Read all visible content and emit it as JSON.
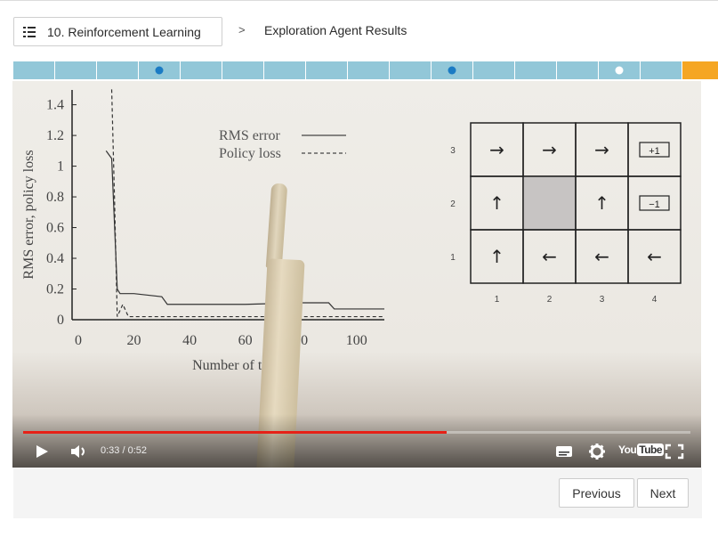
{
  "breadcrumb": {
    "lesson_label": "10. Reinforcement Learning",
    "separator": ">",
    "current": "Exploration Agent Results"
  },
  "progress": {
    "segments": 17,
    "dots": [
      {
        "segment": 3,
        "color": "#1b7bc4"
      },
      {
        "segment": 10,
        "color": "#1b7bc4"
      },
      {
        "segment": 14,
        "color": "#ffffff"
      }
    ],
    "accent": "#f5a623",
    "segment_color": "#92c7d8"
  },
  "video": {
    "current_time": "0:33",
    "duration": "0:52",
    "time_display": "0:33 / 0:52",
    "played_fraction": 0.635,
    "scrub_color": "#e62117",
    "logo_text_1": "You",
    "logo_text_2": "Tube",
    "icons": [
      "play-icon",
      "volume-icon",
      "captions-icon",
      "settings-gear-icon",
      "youtube-logo",
      "fullscreen-icon"
    ]
  },
  "chart_data": {
    "type": "line",
    "xlabel": "Number of trials",
    "ylabel": "RMS error, policy loss",
    "x_ticks": [
      "0",
      "20",
      "40",
      "60",
      "80",
      "100"
    ],
    "y_ticks": [
      "0",
      "0.2",
      "0.4",
      "0.6",
      "0.8",
      "1",
      "1.2",
      "1.4"
    ],
    "ylim": [
      0,
      1.45
    ],
    "xlim": [
      0,
      110
    ],
    "series": [
      {
        "name": "RMS error",
        "style": "solid",
        "x": [
          10,
          12,
          14,
          15,
          20,
          30,
          32,
          60,
          80,
          90,
          92,
          110
        ],
        "y": [
          1.1,
          1.05,
          0.2,
          0.17,
          0.17,
          0.15,
          0.1,
          0.1,
          0.11,
          0.11,
          0.07,
          0.07
        ]
      },
      {
        "name": "Policy loss",
        "style": "dashed",
        "x": [
          12,
          13,
          14,
          16,
          18,
          20,
          110
        ],
        "y": [
          1.5,
          0.8,
          0.02,
          0.1,
          0.02,
          0.02,
          0.02
        ]
      }
    ]
  },
  "grid_world": {
    "row_labels": [
      "3",
      "2",
      "1"
    ],
    "col_labels": [
      "1",
      "2",
      "3",
      "4"
    ],
    "cells": [
      [
        "→",
        "→",
        "→",
        "+1"
      ],
      [
        "↑",
        "",
        "↑",
        "−1"
      ],
      [
        "↑",
        "←",
        "←",
        "←"
      ]
    ]
  },
  "footer": {
    "previous_label": "Previous",
    "next_label": "Next"
  }
}
